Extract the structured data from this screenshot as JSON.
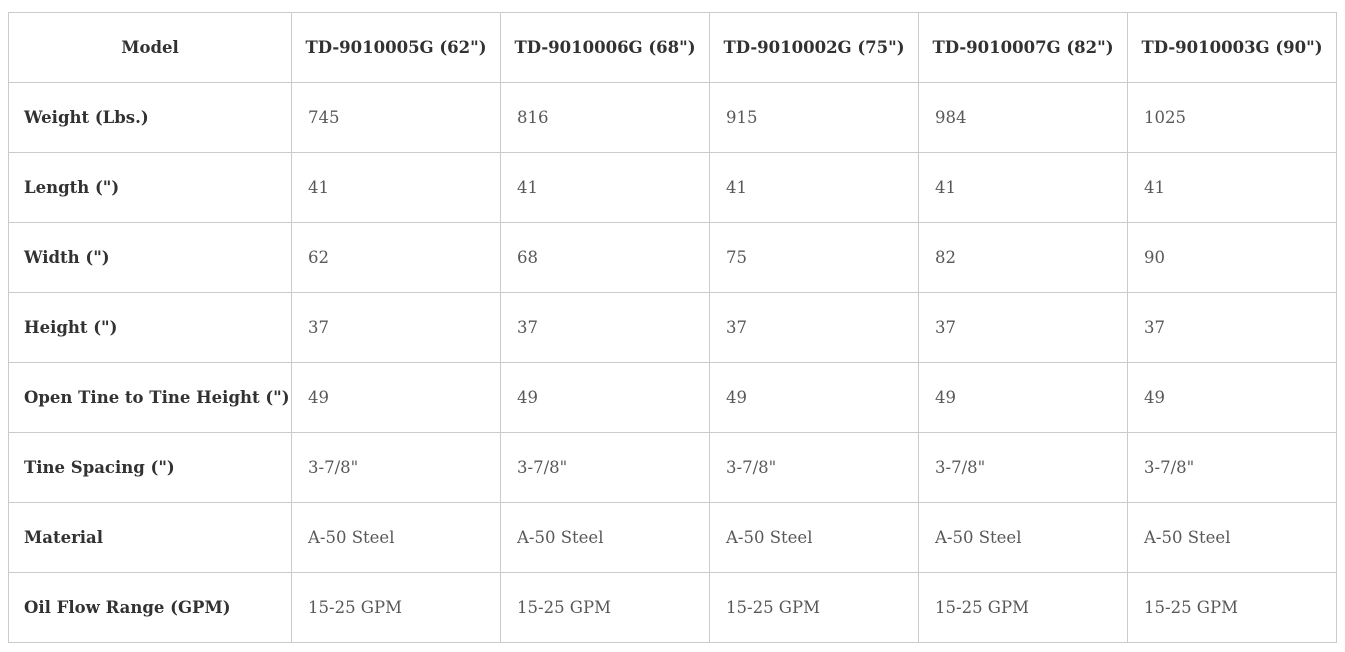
{
  "table": {
    "header": {
      "model_label": "Model",
      "columns": [
        "TD-9010005G (62\")",
        "TD-9010006G (68\")",
        "TD-9010002G (75\")",
        "TD-9010007G (82\")",
        "TD-9010003G (90\")"
      ]
    },
    "rows": [
      {
        "label": "Weight (Lbs.)",
        "values": [
          "745",
          "816",
          "915",
          "984",
          "1025"
        ]
      },
      {
        "label": "Length (\")",
        "values": [
          "41",
          "41",
          "41",
          "41",
          "41"
        ]
      },
      {
        "label": "Width (\")",
        "values": [
          "62",
          "68",
          "75",
          "82",
          "90"
        ]
      },
      {
        "label": "Height (\")",
        "values": [
          "37",
          "37",
          "37",
          "37",
          "37"
        ]
      },
      {
        "label": "Open Tine to Tine Height (\")",
        "values": [
          "49",
          "49",
          "49",
          "49",
          "49"
        ]
      },
      {
        "label": "Tine Spacing (\")",
        "values": [
          "3-7/8\"",
          "3-7/8\"",
          "3-7/8\"",
          "3-7/8\"",
          "3-7/8\""
        ]
      },
      {
        "label": "Material",
        "values": [
          "A-50 Steel",
          "A-50 Steel",
          "A-50 Steel",
          "A-50 Steel",
          "A-50 Steel"
        ]
      },
      {
        "label": "Oil Flow Range (GPM)",
        "values": [
          "15-25 GPM",
          "15-25 GPM",
          "15-25 GPM",
          "15-25 GPM",
          "15-25 GPM"
        ]
      }
    ]
  },
  "colors": {
    "background": "#ffffff",
    "border": "#cbcbcb",
    "header_text": "#323232",
    "label_text": "#323232",
    "value_text": "#57585a"
  }
}
